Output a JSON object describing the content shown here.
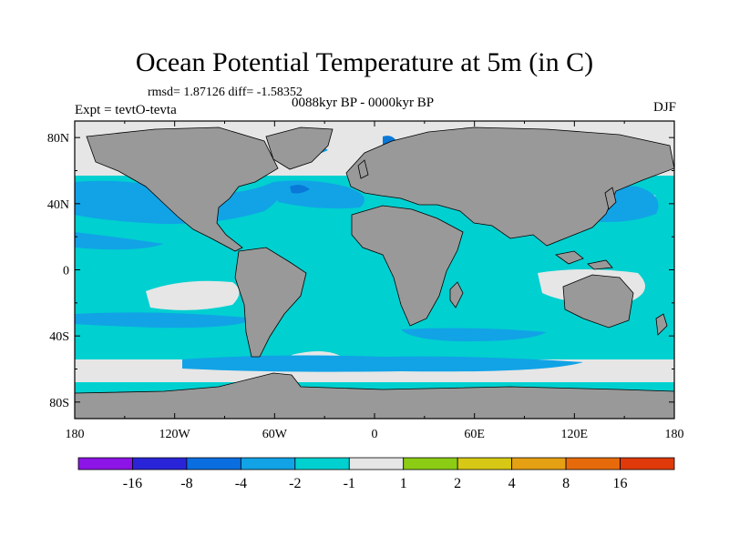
{
  "title": "Ocean Potential Temperature at 5m (in C)",
  "stats": "rmsd= 1.87126 diff= -1.58352",
  "experiment": "Expt = tevtO-tevta",
  "period": "0088kyr BP - 0000kyr BP",
  "season": "DJF",
  "map": {
    "projection": "cylindrical-equidistant",
    "lon_range": [
      -180,
      180
    ],
    "lat_range": [
      -90,
      90
    ],
    "lon_ticks": [
      "180",
      "120W",
      "60W",
      "0",
      "60E",
      "120E",
      "180"
    ],
    "lat_ticks": [
      "80N",
      "40N",
      "0",
      "40S",
      "80S"
    ],
    "land_color": "#999999",
    "ocean_colors": {
      "near_zero": "#e6e6e6",
      "cooling_mild": "#00d0d0",
      "cooling_moderate": "#11a3e6",
      "cooling_strong": "#0a78d8"
    }
  },
  "colorbar": {
    "labels": [
      "-16",
      "-8",
      "-4",
      "-2",
      "-1",
      "1",
      "2",
      "4",
      "8",
      "16"
    ],
    "colors": [
      "#8c14e6",
      "#2a24d8",
      "#0a6ee0",
      "#11a3e6",
      "#00d0d0",
      "#e6e6e6",
      "#8ccc14",
      "#d6c814",
      "#e6a014",
      "#e66a0a",
      "#e03a0a"
    ]
  }
}
